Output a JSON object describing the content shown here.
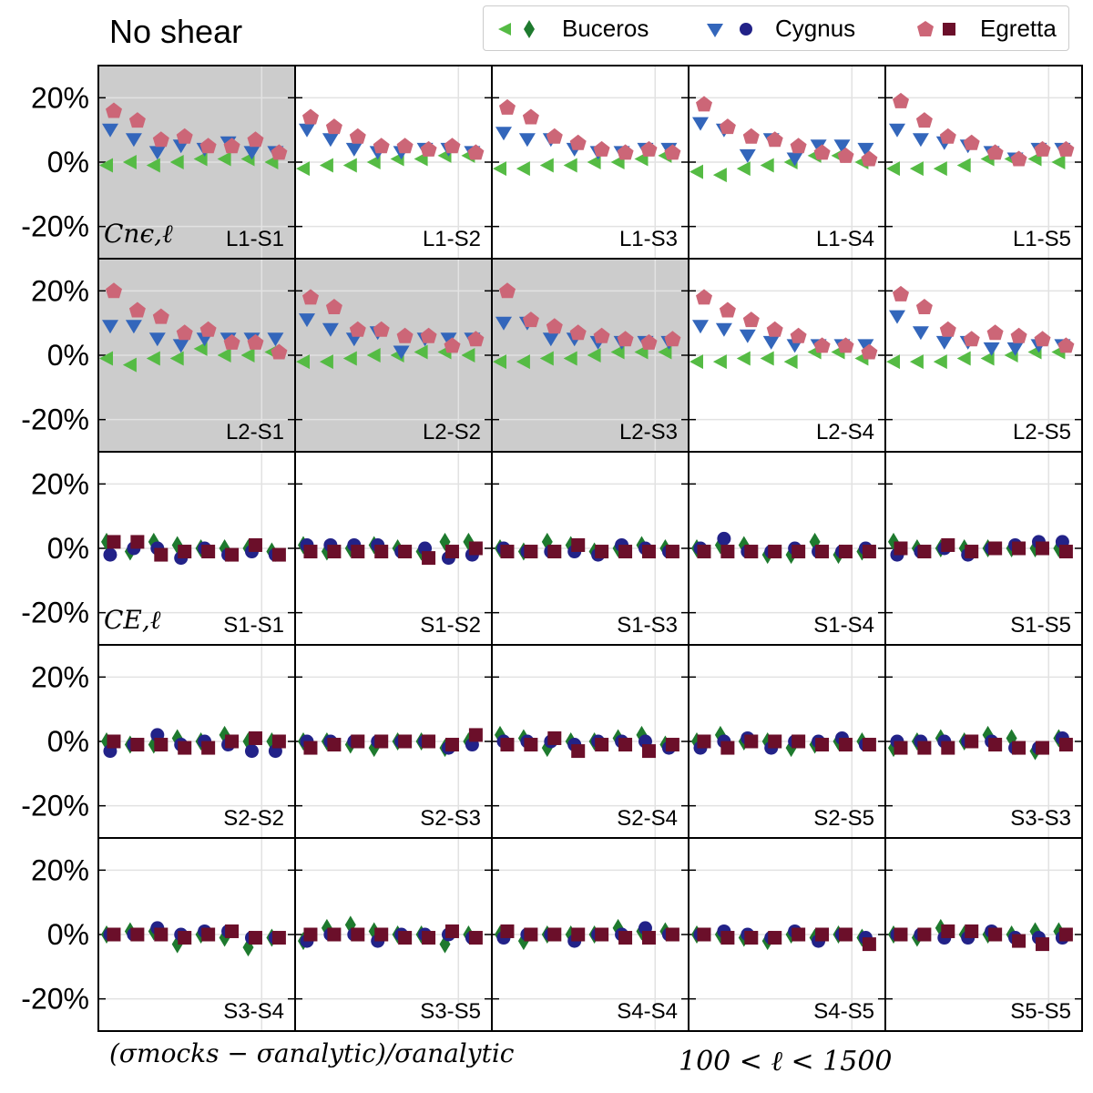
{
  "title": "No shear",
  "legend": {
    "entries": [
      {
        "label": "Buceros",
        "markers": [
          "triangle-left",
          "diamond"
        ],
        "colors": [
          "#55bb44",
          "#1e7a2e"
        ]
      },
      {
        "label": "Cygnus",
        "markers": [
          "triangle-down",
          "circle"
        ],
        "colors": [
          "#3366bb",
          "#222288"
        ]
      },
      {
        "label": "Egretta",
        "markers": [
          "pentagon",
          "square"
        ],
        "colors": [
          "#cc6677",
          "#6b0f2a"
        ]
      }
    ]
  },
  "footer": {
    "left": "(σmocks − σanalytic)/σanalytic",
    "right": "100 < ℓ < 1500"
  },
  "chart_data": {
    "type": "scatter",
    "grid": true,
    "legend_placement": "top-right",
    "ylim": [
      -30,
      30
    ],
    "yticks": [
      "20%",
      "0%",
      "-20%"
    ],
    "ytick_values": [
      20,
      0,
      -20
    ],
    "xlim": [
      0,
      10
    ],
    "x": [
      0.6,
      1.8,
      3.0,
      4.2,
      5.4,
      6.6,
      7.8,
      9.0
    ],
    "row_labels": [
      "Cnϵ,ℓ",
      "",
      "CE,ℓ",
      "",
      ""
    ],
    "colors": {
      "ggl_a": "#55bb44",
      "ggl_b": "#3366bb",
      "ggl_c": "#cc6677",
      "cs_a": "#1e7a2e",
      "cs_b": "#222288",
      "cs_c": "#6b0f2a"
    },
    "panels": [
      {
        "label": "L1-S1",
        "shaded": true,
        "kind": "ggl",
        "Buceros": [
          -1,
          0,
          -1,
          0,
          1,
          1,
          1,
          0
        ],
        "Cygnus": [
          10,
          7,
          3,
          5,
          4,
          6,
          3,
          3
        ],
        "Egretta": [
          16,
          13,
          7,
          8,
          5,
          5,
          7,
          3
        ]
      },
      {
        "label": "L1-S2",
        "shaded": false,
        "kind": "ggl",
        "Buceros": [
          -2,
          -1,
          -1,
          0,
          1,
          1,
          2,
          2
        ],
        "Cygnus": [
          10,
          7,
          4,
          3,
          3,
          4,
          4,
          3
        ],
        "Egretta": [
          14,
          11,
          8,
          5,
          5,
          4,
          5,
          3
        ]
      },
      {
        "label": "L1-S3",
        "shaded": false,
        "kind": "ggl",
        "Buceros": [
          -2,
          -2,
          -1,
          -1,
          0,
          0,
          1,
          2
        ],
        "Cygnus": [
          9,
          7,
          7,
          4,
          3,
          3,
          4,
          4
        ],
        "Egretta": [
          17,
          14,
          8,
          6,
          4,
          3,
          4,
          3
        ]
      },
      {
        "label": "L1-S4",
        "shaded": false,
        "kind": "ggl",
        "Buceros": [
          -3,
          -4,
          -2,
          -1,
          0,
          2,
          2,
          0
        ],
        "Cygnus": [
          12,
          10,
          2,
          7,
          1,
          5,
          5,
          4
        ],
        "Egretta": [
          18,
          11,
          8,
          7,
          5,
          3,
          2,
          1
        ]
      },
      {
        "label": "L1-S5",
        "shaded": false,
        "kind": "ggl",
        "Buceros": [
          -2,
          -2,
          -2,
          -1,
          1,
          1,
          1,
          0
        ],
        "Cygnus": [
          10,
          7,
          6,
          5,
          3,
          1,
          4,
          4
        ],
        "Egretta": [
          19,
          13,
          8,
          6,
          3,
          1,
          4,
          4
        ]
      },
      {
        "label": "L2-S1",
        "shaded": true,
        "kind": "ggl",
        "Buceros": [
          -1,
          -3,
          -1,
          -1,
          2,
          0,
          0,
          1
        ],
        "Cygnus": [
          9,
          9,
          5,
          3,
          5,
          5,
          5,
          5
        ],
        "Egretta": [
          20,
          14,
          12,
          7,
          8,
          4,
          4,
          1
        ]
      },
      {
        "label": "L2-S2",
        "shaded": true,
        "kind": "ggl",
        "Buceros": [
          -2,
          -2,
          -1,
          0,
          0,
          1,
          1,
          0
        ],
        "Cygnus": [
          11,
          8,
          5,
          7,
          1,
          5,
          5,
          5
        ],
        "Egretta": [
          18,
          15,
          8,
          8,
          6,
          6,
          3,
          5
        ]
      },
      {
        "label": "L2-S3",
        "shaded": true,
        "kind": "ggl",
        "Buceros": [
          -2,
          -2,
          -1,
          -1,
          0,
          1,
          1,
          1
        ],
        "Cygnus": [
          10,
          10,
          5,
          5,
          4,
          4,
          4,
          4
        ],
        "Egretta": [
          20,
          11,
          9,
          7,
          6,
          5,
          4,
          5
        ]
      },
      {
        "label": "L2-S4",
        "shaded": false,
        "kind": "ggl",
        "Buceros": [
          -2,
          -2,
          -1,
          -1,
          -2,
          1,
          1,
          -1
        ],
        "Cygnus": [
          9,
          8,
          6,
          4,
          3,
          3,
          3,
          3
        ],
        "Egretta": [
          18,
          14,
          11,
          8,
          6,
          3,
          3,
          1
        ]
      },
      {
        "label": "L2-S5",
        "shaded": false,
        "kind": "ggl",
        "Buceros": [
          -2,
          -2,
          -2,
          -1,
          -1,
          0,
          1,
          1
        ],
        "Cygnus": [
          12,
          7,
          4,
          4,
          2,
          2,
          3,
          3
        ],
        "Egretta": [
          19,
          15,
          8,
          5,
          7,
          6,
          5,
          3
        ]
      },
      {
        "label": "S1-S1",
        "shaded": false,
        "kind": "cs",
        "Buceros": [
          2,
          -1,
          2,
          1,
          0,
          0,
          0,
          -1
        ],
        "Cygnus": [
          -2,
          0,
          0,
          -3,
          0,
          -2,
          -1,
          -2
        ],
        "Egretta": [
          2,
          2,
          -2,
          -1,
          -1,
          -2,
          1,
          -2
        ]
      },
      {
        "label": "S1-S2",
        "shaded": false,
        "kind": "cs",
        "Buceros": [
          1,
          -1,
          0,
          1,
          0,
          -1,
          2,
          2
        ],
        "Cygnus": [
          1,
          1,
          1,
          1,
          -1,
          0,
          -3,
          -2
        ],
        "Egretta": [
          -1,
          -1,
          -1,
          -1,
          -1,
          -3,
          -1,
          0
        ]
      },
      {
        "label": "S1-S3",
        "shaded": false,
        "kind": "cs",
        "Buceros": [
          0,
          -1,
          2,
          1,
          -1,
          0,
          1,
          0
        ],
        "Cygnus": [
          0,
          -1,
          -1,
          -1,
          -2,
          1,
          0,
          -1
        ],
        "Egretta": [
          -1,
          -1,
          -1,
          1,
          -1,
          -1,
          -1,
          -1
        ]
      },
      {
        "label": "S1-S4",
        "shaded": false,
        "kind": "cs",
        "Buceros": [
          0,
          1,
          1,
          -2,
          -2,
          2,
          -2,
          -1
        ],
        "Cygnus": [
          0,
          3,
          -1,
          -1,
          0,
          -1,
          -1,
          0
        ],
        "Egretta": [
          -1,
          -1,
          -1,
          -1,
          -1,
          -1,
          -1,
          -1
        ]
      },
      {
        "label": "S1-S5",
        "shaded": false,
        "kind": "cs",
        "Buceros": [
          2,
          0,
          0,
          0,
          0,
          0,
          0,
          0
        ],
        "Cygnus": [
          -2,
          -1,
          0,
          -2,
          0,
          1,
          2,
          2
        ],
        "Egretta": [
          0,
          -1,
          1,
          -1,
          0,
          0,
          0,
          -1
        ]
      },
      {
        "label": "S2-S2",
        "shaded": false,
        "kind": "cs",
        "Buceros": [
          0,
          -1,
          -1,
          1,
          0,
          2,
          0,
          0
        ],
        "Cygnus": [
          -3,
          -1,
          2,
          -1,
          0,
          -1,
          -3,
          -3
        ],
        "Egretta": [
          0,
          -1,
          -1,
          -2,
          -2,
          0,
          1,
          0
        ]
      },
      {
        "label": "S2-S3",
        "shaded": false,
        "kind": "cs",
        "Buceros": [
          0,
          0,
          -1,
          -2,
          0,
          0,
          -2,
          0
        ],
        "Cygnus": [
          0,
          0,
          0,
          0,
          0,
          0,
          -2,
          -1
        ],
        "Egretta": [
          -2,
          -1,
          0,
          0,
          0,
          0,
          -1,
          2
        ]
      },
      {
        "label": "S2-S4",
        "shaded": false,
        "kind": "cs",
        "Buceros": [
          2,
          1,
          -2,
          0,
          0,
          1,
          2,
          -1
        ],
        "Cygnus": [
          0,
          0,
          0,
          -1,
          0,
          0,
          0,
          -2
        ],
        "Egretta": [
          -1,
          -1,
          1,
          -3,
          -1,
          -1,
          -3,
          -1
        ]
      },
      {
        "label": "S2-S5",
        "shaded": false,
        "kind": "cs",
        "Buceros": [
          0,
          2,
          0,
          0,
          -2,
          -1,
          0,
          0
        ],
        "Cygnus": [
          -2,
          0,
          1,
          -2,
          0,
          0,
          1,
          -1
        ],
        "Egretta": [
          0,
          -2,
          0,
          0,
          0,
          -1,
          -1,
          -1
        ]
      },
      {
        "label": "S3-S3",
        "shaded": false,
        "kind": "cs",
        "Buceros": [
          -2,
          0,
          1,
          0,
          2,
          1,
          -3,
          1
        ],
        "Cygnus": [
          0,
          0,
          0,
          0,
          0,
          -2,
          -2,
          1
        ],
        "Egretta": [
          -2,
          -2,
          -2,
          0,
          -1,
          -2,
          -2,
          -1
        ]
      },
      {
        "label": "S3-S4",
        "shaded": false,
        "kind": "cs",
        "Buceros": [
          0,
          1,
          1,
          -3,
          0,
          -1,
          -4,
          -1
        ],
        "Cygnus": [
          0,
          0,
          2,
          0,
          1,
          1,
          -1,
          -1
        ],
        "Egretta": [
          0,
          0,
          0,
          -1,
          0,
          1,
          -1,
          -1
        ]
      },
      {
        "label": "S3-S5",
        "shaded": false,
        "kind": "cs",
        "Buceros": [
          -2,
          2,
          3,
          1,
          0,
          0,
          -3,
          0
        ],
        "Cygnus": [
          -2,
          0,
          0,
          -2,
          0,
          0,
          0,
          -1
        ],
        "Egretta": [
          0,
          0,
          0,
          0,
          -1,
          -1,
          1,
          -1
        ]
      },
      {
        "label": "S4-S4",
        "shaded": false,
        "kind": "cs",
        "Buceros": [
          0,
          -2,
          0,
          0,
          0,
          2,
          1,
          1
        ],
        "Cygnus": [
          -1,
          0,
          0,
          -2,
          0,
          0,
          2,
          0
        ],
        "Egretta": [
          1,
          0,
          0,
          0,
          0,
          -1,
          -1,
          0
        ]
      },
      {
        "label": "S4-S5",
        "shaded": false,
        "kind": "cs",
        "Buceros": [
          0,
          0,
          -1,
          -2,
          0,
          -1,
          0,
          -1
        ],
        "Cygnus": [
          0,
          1,
          0,
          -1,
          1,
          -2,
          0,
          -1
        ],
        "Egretta": [
          0,
          -1,
          -1,
          -1,
          0,
          0,
          0,
          -3
        ]
      },
      {
        "label": "S5-S5",
        "shaded": false,
        "kind": "cs",
        "Buceros": [
          0,
          -1,
          2,
          0,
          0,
          0,
          1,
          1
        ],
        "Cygnus": [
          0,
          0,
          -1,
          -1,
          1,
          -1,
          -1,
          -1
        ],
        "Egretta": [
          0,
          0,
          1,
          1,
          0,
          -2,
          -3,
          0
        ]
      }
    ]
  }
}
